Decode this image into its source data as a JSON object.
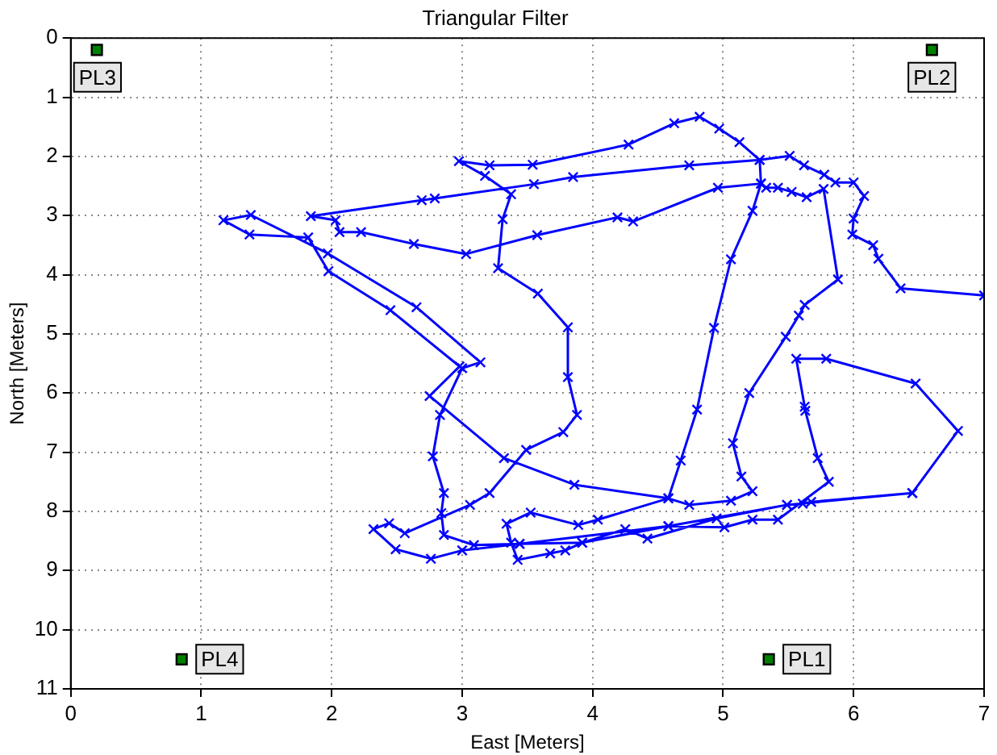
{
  "chart_data": {
    "type": "line",
    "title": "Triangular Filter",
    "xlabel": "East [Meters]",
    "ylabel": "North [Meters]",
    "xlim": [
      0,
      7
    ],
    "xticks": [
      0,
      1,
      2,
      3,
      4,
      5,
      6,
      7
    ],
    "ylim": [
      11,
      0
    ],
    "yticks": [
      0,
      1,
      2,
      3,
      4,
      5,
      6,
      7,
      8,
      9,
      10,
      11
    ],
    "grid": true,
    "legend": false,
    "series": [
      {
        "color": "#0000ff",
        "marker": "cross",
        "line_style": "solid",
        "x": [
          7.0,
          6.36,
          6.19,
          6.15,
          5.99,
          6.0,
          6.08,
          6.0,
          5.86,
          5.775,
          5.62,
          5.51,
          5.28,
          4.74,
          3.85,
          3.55,
          2.79,
          2.69,
          1.84,
          2.03,
          2.06,
          2.225,
          2.63,
          3.03,
          3.575,
          4.19,
          4.31,
          4.96,
          5.29,
          5.33,
          5.42,
          5.525,
          5.64,
          5.77,
          5.88,
          5.625,
          5.58,
          5.48,
          5.2,
          5.075,
          5.14,
          5.225,
          5.06,
          4.74,
          4.58,
          4.04,
          3.89,
          3.525,
          3.34,
          3.375,
          3.425,
          3.675,
          3.79,
          3.92,
          4.25,
          4.42,
          4.95,
          5.49,
          5.61,
          5.675,
          6.45,
          6.8,
          6.475,
          5.79,
          5.56,
          5.625,
          5.63,
          5.725,
          5.81,
          5.42,
          5.225,
          5.01,
          4.58,
          3.44,
          3.0,
          2.76,
          2.49,
          2.32,
          2.44,
          2.56,
          3.06,
          3.21,
          3.49,
          3.775,
          3.88,
          3.81,
          3.81,
          3.58,
          3.275,
          3.31,
          3.375,
          3.175,
          2.975,
          3.21,
          3.54,
          4.275,
          4.625,
          4.82,
          4.97,
          5.125,
          5.28,
          5.29,
          5.225,
          5.06,
          4.93,
          4.8,
          4.675,
          4.58,
          3.86,
          3.32,
          2.75,
          2.98,
          2.45,
          1.975,
          1.82,
          1.37,
          1.17,
          1.38,
          1.97,
          2.65,
          3.14,
          3.0,
          2.83,
          2.775,
          2.86,
          2.84,
          2.86,
          3.09,
          3.44,
          3.92,
          4.58,
          5.49,
          6.45
        ],
        "values": [
          4.35,
          4.23,
          3.73,
          3.5,
          3.32,
          3.05,
          2.67,
          2.44,
          2.44,
          2.31,
          2.15,
          1.99,
          2.06,
          2.15,
          2.35,
          2.47,
          2.71,
          2.74,
          3.01,
          3.08,
          3.28,
          3.28,
          3.48,
          3.65,
          3.33,
          3.03,
          3.1,
          2.53,
          2.46,
          2.53,
          2.53,
          2.6,
          2.69,
          2.55,
          4.08,
          4.51,
          4.69,
          5.05,
          6.0,
          6.85,
          7.41,
          7.66,
          7.82,
          7.89,
          7.78,
          8.14,
          8.23,
          8.02,
          8.21,
          8.53,
          8.82,
          8.71,
          8.66,
          8.53,
          8.3,
          8.46,
          8.12,
          7.89,
          7.87,
          7.84,
          7.69,
          6.64,
          5.84,
          5.42,
          5.42,
          6.23,
          6.3,
          7.1,
          7.5,
          8.14,
          8.14,
          8.27,
          8.25,
          8.55,
          8.66,
          8.8,
          8.64,
          8.3,
          8.2,
          8.37,
          7.89,
          7.69,
          6.96,
          6.66,
          6.37,
          5.73,
          4.89,
          4.32,
          3.89,
          3.06,
          2.64,
          2.33,
          2.08,
          2.15,
          2.14,
          1.8,
          1.44,
          1.33,
          1.53,
          1.76,
          2.06,
          2.46,
          2.92,
          3.74,
          4.9,
          6.28,
          7.14,
          7.78,
          7.55,
          7.1,
          6.05,
          5.55,
          4.6,
          3.94,
          3.37,
          3.32,
          3.08,
          2.99,
          3.64,
          4.55,
          5.48,
          5.58,
          6.37,
          7.07,
          7.69,
          8.03,
          8.4,
          8.57,
          8.55,
          8.53,
          8.25,
          7.89,
          7.69
        ]
      },
      {
        "type": "scatter",
        "color": "#008000",
        "marker": "square",
        "x": [
          5.35,
          6.6,
          0.2,
          0.85
        ],
        "values": [
          10.5,
          0.2,
          0.2,
          10.5
        ]
      }
    ],
    "annotations": [
      {
        "text": "PL1",
        "x": 5.35,
        "y": 10.5
      },
      {
        "text": "PL2",
        "x": 6.6,
        "y": 0.2
      },
      {
        "text": "PL3",
        "x": 0.2,
        "y": 0.2
      },
      {
        "text": "PL4",
        "x": 0.85,
        "y": 10.5
      }
    ]
  }
}
